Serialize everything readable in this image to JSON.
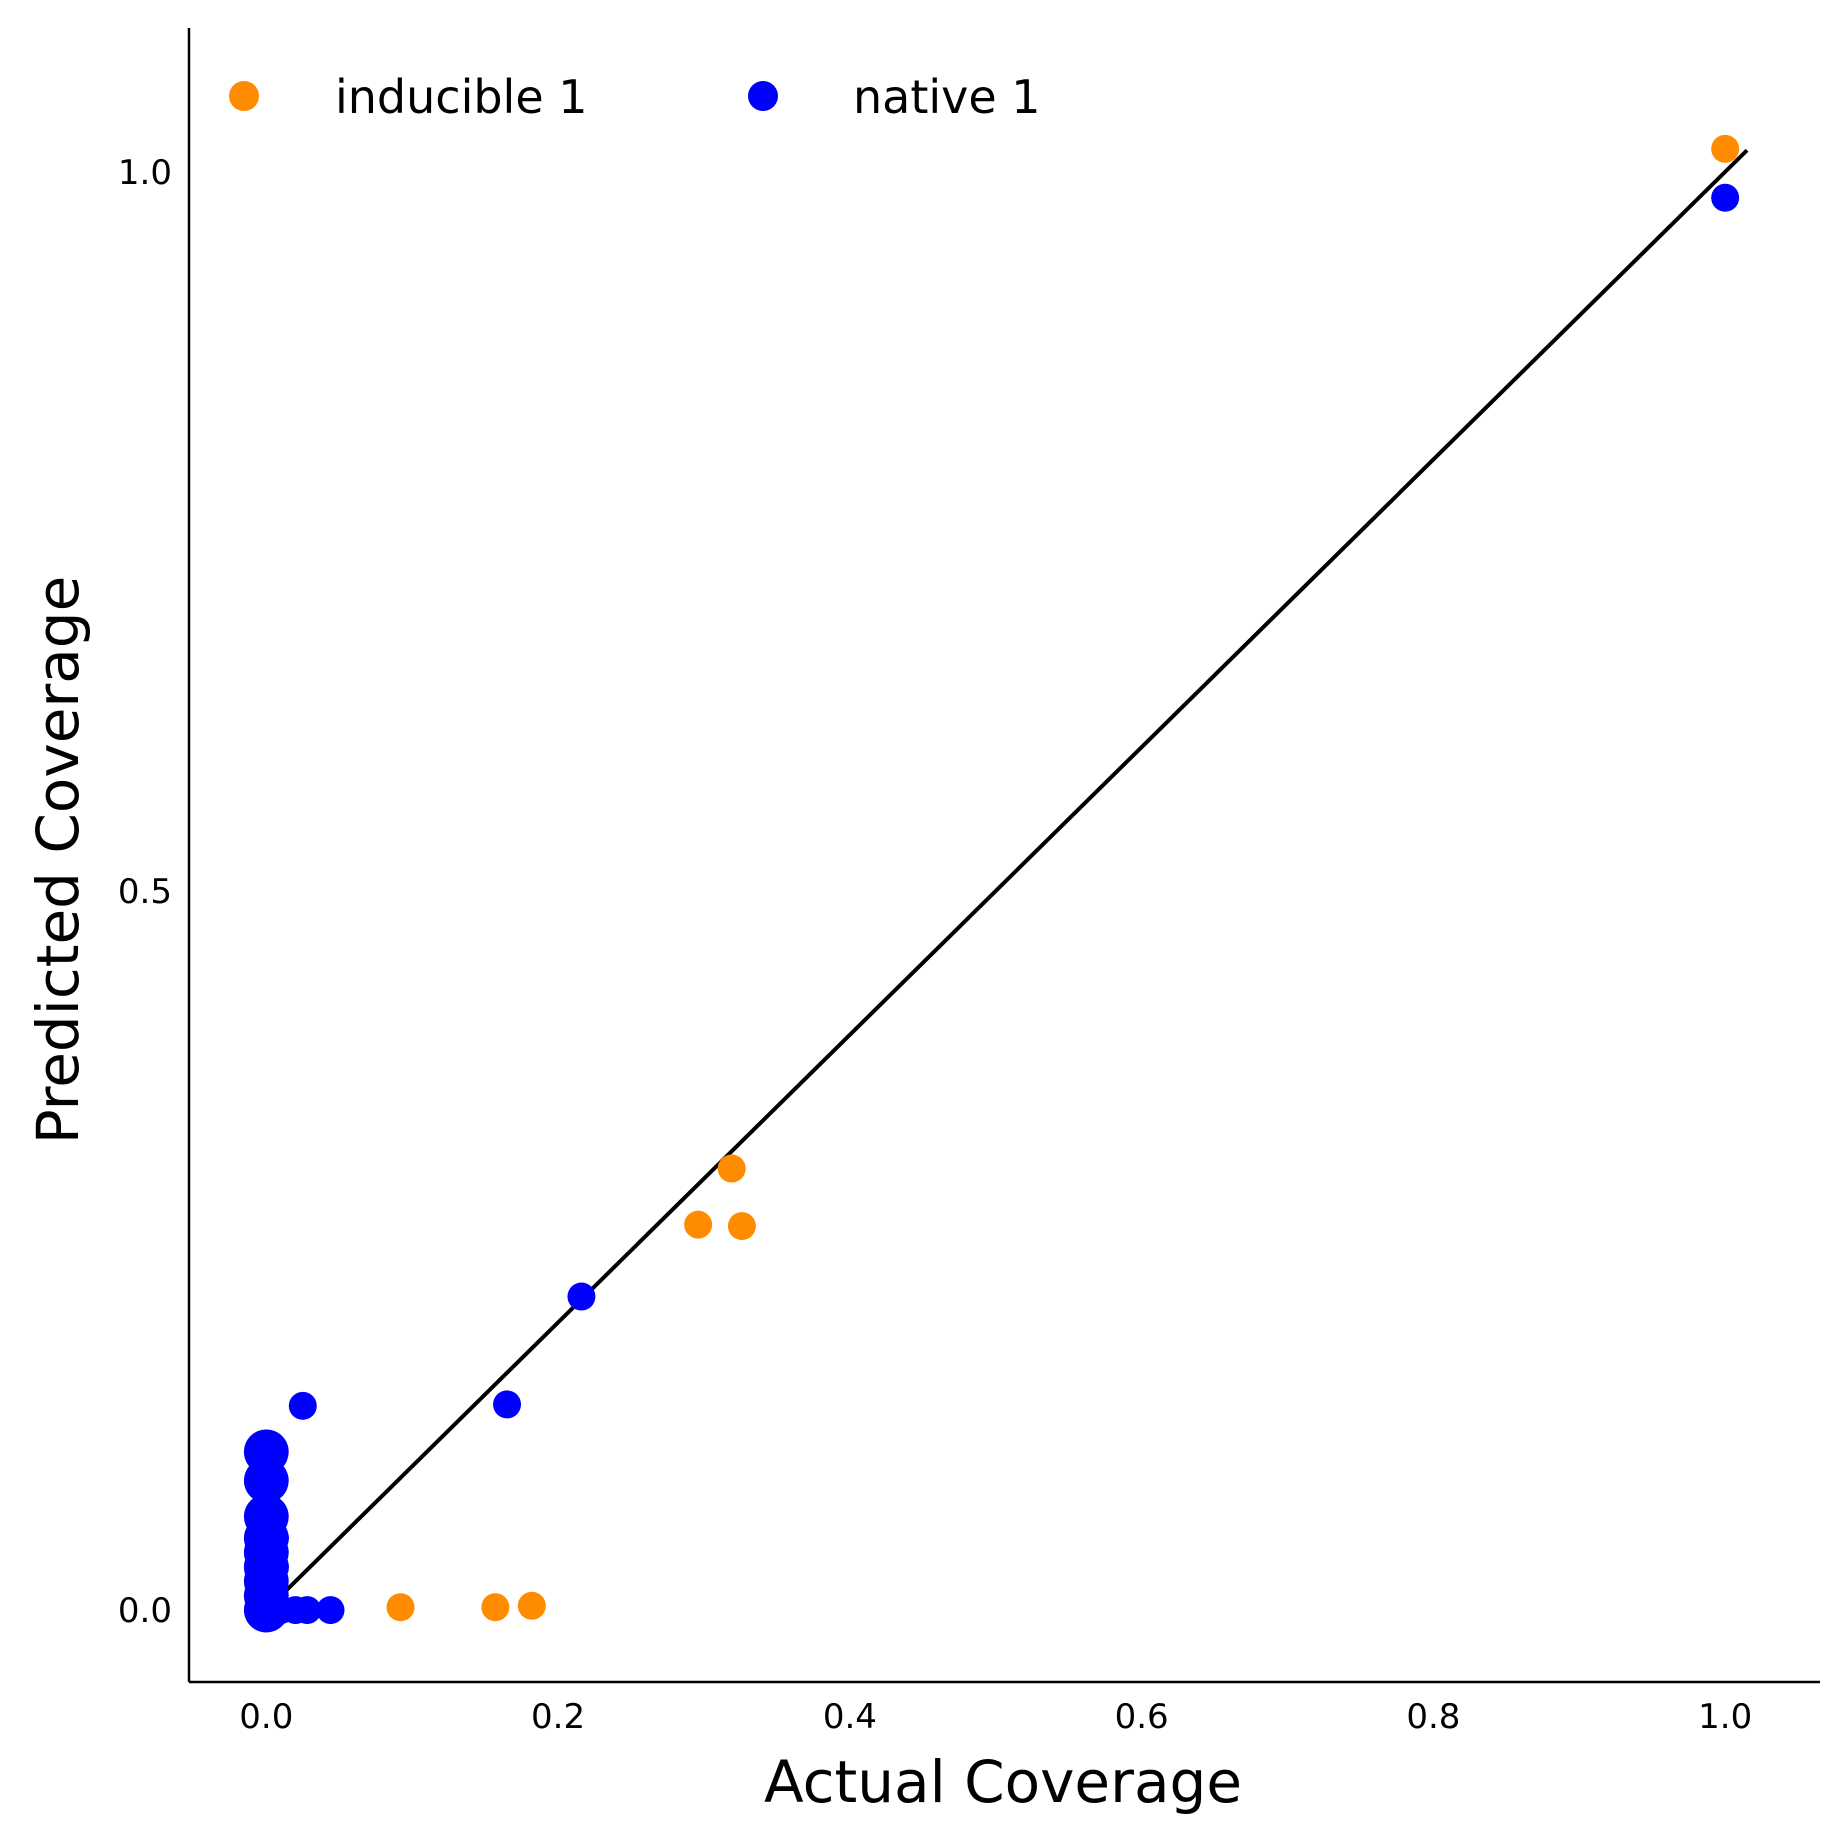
{
  "chart_data": {
    "type": "scatter",
    "title": "",
    "xlabel": "Actual Coverage",
    "ylabel": "Predicted Coverage",
    "xlim": [
      -0.053,
      1.065
    ],
    "ylim": [
      -0.05,
      1.1
    ],
    "xticks": [
      0.0,
      0.2,
      0.4,
      0.6,
      0.8,
      1.0
    ],
    "xtick_labels": [
      "0.0",
      "0.2",
      "0.4",
      "0.6",
      "0.8",
      "1.0"
    ],
    "yticks": [
      0.0,
      0.5,
      1.0
    ],
    "ytick_labels": [
      "0.0",
      "0.5",
      "1.0"
    ],
    "grid": false,
    "legend_position": "top-left",
    "identity_line": {
      "from": [
        0.0,
        0.0
      ],
      "to": [
        1.015,
        1.015
      ],
      "color": "#000000"
    },
    "series": [
      {
        "name": "inducible 1",
        "color": "#ff8c00",
        "points": [
          {
            "x": 0.092,
            "y": 0.002,
            "s": 1
          },
          {
            "x": 0.157,
            "y": 0.002,
            "s": 1
          },
          {
            "x": 0.182,
            "y": 0.003,
            "s": 1
          },
          {
            "x": 0.296,
            "y": 0.268,
            "s": 1
          },
          {
            "x": 0.319,
            "y": 0.307,
            "s": 1
          },
          {
            "x": 0.326,
            "y": 0.267,
            "s": 1
          },
          {
            "x": 1.0,
            "y": 1.016,
            "s": 1
          }
        ]
      },
      {
        "name": "native 1",
        "color": "#0000ff",
        "points": [
          {
            "x": 0.0,
            "y": 0.0,
            "s": 1.6
          },
          {
            "x": 0.0,
            "y": 0.01,
            "s": 1.6
          },
          {
            "x": 0.0,
            "y": 0.02,
            "s": 1.6
          },
          {
            "x": 0.0,
            "y": 0.03,
            "s": 1.6
          },
          {
            "x": 0.0,
            "y": 0.04,
            "s": 1.6
          },
          {
            "x": 0.0,
            "y": 0.05,
            "s": 1.6
          },
          {
            "x": 0.0,
            "y": 0.065,
            "s": 1.6
          },
          {
            "x": 0.0,
            "y": 0.09,
            "s": 1.6
          },
          {
            "x": 0.0,
            "y": 0.11,
            "s": 1.6
          },
          {
            "x": 0.0,
            "y": 0.001,
            "s": 1.2
          },
          {
            "x": 0.0,
            "y": 0.012,
            "s": 1.2
          },
          {
            "x": 0.004,
            "y": 0.03,
            "s": 1.2
          },
          {
            "x": 0.004,
            "y": 0.05,
            "s": 1.2
          },
          {
            "x": 0.005,
            "y": 0.0,
            "s": 1
          },
          {
            "x": 0.01,
            "y": 0.0,
            "s": 1
          },
          {
            "x": 0.02,
            "y": 0.0,
            "s": 1
          },
          {
            "x": 0.028,
            "y": 0.0,
            "s": 1
          },
          {
            "x": 0.044,
            "y": 0.0,
            "s": 1
          },
          {
            "x": 0.025,
            "y": 0.142,
            "s": 1
          },
          {
            "x": 0.165,
            "y": 0.143,
            "s": 1
          },
          {
            "x": 0.216,
            "y": 0.218,
            "s": 1
          },
          {
            "x": 1.0,
            "y": 0.982,
            "s": 1
          }
        ]
      }
    ]
  }
}
